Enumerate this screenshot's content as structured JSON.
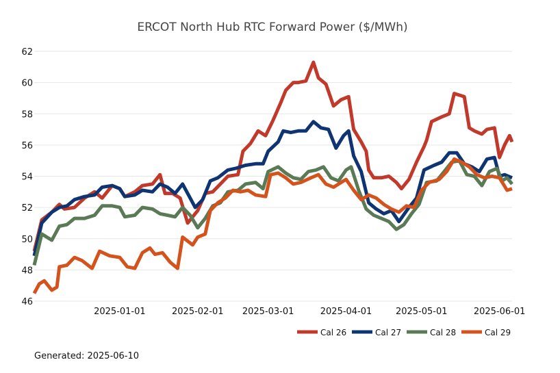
{
  "chart_data": {
    "type": "line",
    "title": "ERCOT North Hub RTC Forward Power ($/MWh)",
    "xlabel": "",
    "ylabel": "",
    "x_start": "2024-11-28",
    "x_end": "2025-06-06",
    "ylim": [
      46,
      62
    ],
    "yticks": [
      46,
      48,
      50,
      52,
      54,
      56,
      58,
      60,
      62
    ],
    "xticks": [
      "2025-01-01",
      "2025-02-01",
      "2025-03-01",
      "2025-04-01",
      "2025-05-01",
      "2025-06-01"
    ],
    "grid": "horizontal",
    "legend_position": "bottom-right",
    "series": [
      {
        "name": "Cal 26",
        "color": "#c0392b",
        "points": [
          [
            "2024-11-28",
            49.2
          ],
          [
            "2024-12-01",
            51.2
          ],
          [
            "2024-12-05",
            51.7
          ],
          [
            "2024-12-08",
            52.2
          ],
          [
            "2024-12-10",
            51.9
          ],
          [
            "2024-12-14",
            52.0
          ],
          [
            "2024-12-18",
            52.6
          ],
          [
            "2024-12-22",
            53.0
          ],
          [
            "2024-12-25",
            52.6
          ],
          [
            "2024-12-29",
            53.4
          ],
          [
            "2025-01-01",
            53.2
          ],
          [
            "2025-01-03",
            52.7
          ],
          [
            "2025-01-07",
            53.0
          ],
          [
            "2025-01-10",
            53.4
          ],
          [
            "2025-01-14",
            53.5
          ],
          [
            "2025-01-17",
            54.1
          ],
          [
            "2025-01-19",
            52.9
          ],
          [
            "2025-01-22",
            52.9
          ],
          [
            "2025-01-25",
            52.6
          ],
          [
            "2025-01-28",
            51.0
          ],
          [
            "2025-02-01",
            51.8
          ],
          [
            "2025-02-04",
            52.9
          ],
          [
            "2025-02-07",
            53.0
          ],
          [
            "2025-02-10",
            53.5
          ],
          [
            "2025-02-13",
            54.0
          ],
          [
            "2025-02-17",
            54.1
          ],
          [
            "2025-02-19",
            55.6
          ],
          [
            "2025-02-22",
            56.1
          ],
          [
            "2025-02-25",
            56.9
          ],
          [
            "2025-02-28",
            56.6
          ],
          [
            "2025-03-03",
            57.6
          ],
          [
            "2025-03-06",
            58.7
          ],
          [
            "2025-03-08",
            59.5
          ],
          [
            "2025-03-11",
            60.0
          ],
          [
            "2025-03-13",
            60.0
          ],
          [
            "2025-03-16",
            60.1
          ],
          [
            "2025-03-19",
            61.3
          ],
          [
            "2025-03-21",
            60.3
          ],
          [
            "2025-03-24",
            59.9
          ],
          [
            "2025-03-27",
            58.5
          ],
          [
            "2025-03-30",
            58.9
          ],
          [
            "2025-04-02",
            59.1
          ],
          [
            "2025-04-04",
            57.0
          ],
          [
            "2025-04-07",
            56.2
          ],
          [
            "2025-04-09",
            55.6
          ],
          [
            "2025-04-10",
            54.4
          ],
          [
            "2025-04-12",
            53.9
          ],
          [
            "2025-04-15",
            53.9
          ],
          [
            "2025-04-18",
            54.0
          ],
          [
            "2025-04-21",
            53.6
          ],
          [
            "2025-04-23",
            53.2
          ],
          [
            "2025-04-26",
            53.8
          ],
          [
            "2025-04-29",
            54.9
          ],
          [
            "2025-05-02",
            55.9
          ],
          [
            "2025-05-03",
            56.3
          ],
          [
            "2025-05-05",
            57.5
          ],
          [
            "2025-05-09",
            57.8
          ],
          [
            "2025-05-12",
            58.0
          ],
          [
            "2025-05-14",
            59.3
          ],
          [
            "2025-05-18",
            59.1
          ],
          [
            "2025-05-20",
            57.1
          ],
          [
            "2025-05-22",
            56.9
          ],
          [
            "2025-05-25",
            56.7
          ],
          [
            "2025-05-27",
            57.0
          ],
          [
            "2025-05-30",
            57.1
          ],
          [
            "2025-06-01",
            55.2
          ],
          [
            "2025-06-03",
            56.0
          ],
          [
            "2025-06-05",
            56.6
          ],
          [
            "2025-06-06",
            56.2
          ]
        ]
      },
      {
        "name": "Cal 27",
        "color": "#0f3472",
        "points": [
          [
            "2024-11-28",
            48.9
          ],
          [
            "2024-12-01",
            51.0
          ],
          [
            "2024-12-05",
            51.7
          ],
          [
            "2024-12-08",
            52.0
          ],
          [
            "2024-12-11",
            52.1
          ],
          [
            "2024-12-14",
            52.5
          ],
          [
            "2024-12-18",
            52.7
          ],
          [
            "2024-12-22",
            52.8
          ],
          [
            "2024-12-25",
            53.3
          ],
          [
            "2024-12-29",
            53.4
          ],
          [
            "2025-01-01",
            53.2
          ],
          [
            "2025-01-03",
            52.7
          ],
          [
            "2025-01-07",
            52.8
          ],
          [
            "2025-01-10",
            53.1
          ],
          [
            "2025-01-14",
            53.0
          ],
          [
            "2025-01-17",
            53.5
          ],
          [
            "2025-01-20",
            53.3
          ],
          [
            "2025-01-23",
            52.9
          ],
          [
            "2025-01-26",
            53.5
          ],
          [
            "2025-01-29",
            52.6
          ],
          [
            "2025-01-31",
            52.0
          ],
          [
            "2025-02-03",
            52.5
          ],
          [
            "2025-02-06",
            53.7
          ],
          [
            "2025-02-09",
            53.9
          ],
          [
            "2025-02-13",
            54.4
          ],
          [
            "2025-02-16",
            54.5
          ],
          [
            "2025-02-20",
            54.7
          ],
          [
            "2025-02-24",
            54.8
          ],
          [
            "2025-02-27",
            54.8
          ],
          [
            "2025-03-01",
            55.6
          ],
          [
            "2025-03-05",
            56.2
          ],
          [
            "2025-03-07",
            56.9
          ],
          [
            "2025-03-10",
            56.8
          ],
          [
            "2025-03-13",
            56.9
          ],
          [
            "2025-03-16",
            56.9
          ],
          [
            "2025-03-19",
            57.5
          ],
          [
            "2025-03-22",
            57.1
          ],
          [
            "2025-03-25",
            57.0
          ],
          [
            "2025-03-28",
            55.8
          ],
          [
            "2025-03-31",
            56.6
          ],
          [
            "2025-04-02",
            56.9
          ],
          [
            "2025-04-04",
            55.3
          ],
          [
            "2025-04-07",
            54.3
          ],
          [
            "2025-04-10",
            52.3
          ],
          [
            "2025-04-13",
            51.9
          ],
          [
            "2025-04-16",
            51.6
          ],
          [
            "2025-04-19",
            51.8
          ],
          [
            "2025-04-22",
            51.1
          ],
          [
            "2025-04-26",
            52.0
          ],
          [
            "2025-04-29",
            52.6
          ],
          [
            "2025-05-02",
            54.4
          ],
          [
            "2025-05-06",
            54.7
          ],
          [
            "2025-05-09",
            54.9
          ],
          [
            "2025-05-12",
            55.5
          ],
          [
            "2025-05-15",
            55.5
          ],
          [
            "2025-05-18",
            54.8
          ],
          [
            "2025-05-21",
            54.6
          ],
          [
            "2025-05-24",
            54.3
          ],
          [
            "2025-05-27",
            55.1
          ],
          [
            "2025-05-30",
            55.2
          ],
          [
            "2025-06-01",
            54.0
          ],
          [
            "2025-06-03",
            54.1
          ],
          [
            "2025-06-06",
            53.9
          ]
        ]
      },
      {
        "name": "Cal 28",
        "color": "#5a7a55",
        "points": [
          [
            "2024-11-28",
            48.3
          ],
          [
            "2024-12-01",
            50.3
          ],
          [
            "2024-12-05",
            49.9
          ],
          [
            "2024-12-08",
            50.8
          ],
          [
            "2024-12-11",
            50.9
          ],
          [
            "2024-12-14",
            51.3
          ],
          [
            "2024-12-18",
            51.3
          ],
          [
            "2024-12-22",
            51.5
          ],
          [
            "2024-12-25",
            52.1
          ],
          [
            "2024-12-29",
            52.1
          ],
          [
            "2025-01-01",
            52.0
          ],
          [
            "2025-01-03",
            51.4
          ],
          [
            "2025-01-07",
            51.5
          ],
          [
            "2025-01-10",
            52.0
          ],
          [
            "2025-01-14",
            51.9
          ],
          [
            "2025-01-17",
            51.6
          ],
          [
            "2025-01-20",
            51.5
          ],
          [
            "2025-01-23",
            51.4
          ],
          [
            "2025-01-26",
            52.0
          ],
          [
            "2025-01-29",
            51.5
          ],
          [
            "2025-02-01",
            50.7
          ],
          [
            "2025-02-04",
            51.3
          ],
          [
            "2025-02-07",
            52.1
          ],
          [
            "2025-02-10",
            52.3
          ],
          [
            "2025-02-13",
            53.0
          ],
          [
            "2025-02-17",
            53.1
          ],
          [
            "2025-02-20",
            53.5
          ],
          [
            "2025-02-24",
            53.6
          ],
          [
            "2025-02-27",
            53.2
          ],
          [
            "2025-03-01",
            54.3
          ],
          [
            "2025-03-05",
            54.6
          ],
          [
            "2025-03-08",
            54.2
          ],
          [
            "2025-03-11",
            53.9
          ],
          [
            "2025-03-14",
            53.8
          ],
          [
            "2025-03-17",
            54.3
          ],
          [
            "2025-03-20",
            54.4
          ],
          [
            "2025-03-23",
            54.6
          ],
          [
            "2025-03-26",
            53.9
          ],
          [
            "2025-03-29",
            53.7
          ],
          [
            "2025-04-01",
            54.4
          ],
          [
            "2025-04-03",
            54.6
          ],
          [
            "2025-04-06",
            53.1
          ],
          [
            "2025-04-09",
            51.9
          ],
          [
            "2025-04-12",
            51.5
          ],
          [
            "2025-04-15",
            51.3
          ],
          [
            "2025-04-18",
            51.1
          ],
          [
            "2025-04-21",
            50.6
          ],
          [
            "2025-04-24",
            50.9
          ],
          [
            "2025-04-27",
            51.6
          ],
          [
            "2025-04-30",
            52.2
          ],
          [
            "2025-05-03",
            53.6
          ],
          [
            "2025-05-07",
            53.7
          ],
          [
            "2025-05-10",
            54.3
          ],
          [
            "2025-05-13",
            54.9
          ],
          [
            "2025-05-16",
            55.0
          ],
          [
            "2025-05-19",
            54.1
          ],
          [
            "2025-05-22",
            54.0
          ],
          [
            "2025-05-25",
            53.4
          ],
          [
            "2025-05-28",
            54.3
          ],
          [
            "2025-05-31",
            54.5
          ],
          [
            "2025-06-02",
            53.7
          ],
          [
            "2025-06-04",
            53.9
          ],
          [
            "2025-06-06",
            53.5
          ]
        ]
      },
      {
        "name": "Cal 29",
        "color": "#d4531c",
        "points": [
          [
            "2024-11-28",
            46.5
          ],
          [
            "2024-11-30",
            47.1
          ],
          [
            "2024-12-02",
            47.3
          ],
          [
            "2024-12-05",
            46.7
          ],
          [
            "2024-12-07",
            46.9
          ],
          [
            "2024-12-08",
            48.2
          ],
          [
            "2024-12-11",
            48.3
          ],
          [
            "2024-12-14",
            48.8
          ],
          [
            "2024-12-17",
            48.6
          ],
          [
            "2024-12-21",
            48.1
          ],
          [
            "2024-12-24",
            49.2
          ],
          [
            "2024-12-28",
            48.9
          ],
          [
            "2025-01-01",
            48.8
          ],
          [
            "2025-01-04",
            48.2
          ],
          [
            "2025-01-07",
            48.1
          ],
          [
            "2025-01-10",
            49.1
          ],
          [
            "2025-01-13",
            49.4
          ],
          [
            "2025-01-15",
            49.0
          ],
          [
            "2025-01-18",
            49.1
          ],
          [
            "2025-01-21",
            48.5
          ],
          [
            "2025-01-24",
            48.1
          ],
          [
            "2025-01-26",
            50.1
          ],
          [
            "2025-01-30",
            49.6
          ],
          [
            "2025-02-01",
            50.1
          ],
          [
            "2025-02-04",
            50.3
          ],
          [
            "2025-02-06",
            51.8
          ],
          [
            "2025-02-09",
            52.3
          ],
          [
            "2025-02-12",
            52.6
          ],
          [
            "2025-02-15",
            53.1
          ],
          [
            "2025-02-18",
            53.0
          ],
          [
            "2025-02-21",
            53.1
          ],
          [
            "2025-02-24",
            52.8
          ],
          [
            "2025-02-28",
            52.7
          ],
          [
            "2025-03-02",
            54.1
          ],
          [
            "2025-03-05",
            54.2
          ],
          [
            "2025-03-08",
            53.9
          ],
          [
            "2025-03-11",
            53.5
          ],
          [
            "2025-03-14",
            53.6
          ],
          [
            "2025-03-18",
            53.9
          ],
          [
            "2025-03-21",
            54.1
          ],
          [
            "2025-03-24",
            53.5
          ],
          [
            "2025-03-27",
            53.3
          ],
          [
            "2025-03-30",
            53.6
          ],
          [
            "2025-04-01",
            53.8
          ],
          [
            "2025-04-04",
            53.1
          ],
          [
            "2025-04-07",
            52.5
          ],
          [
            "2025-04-10",
            52.8
          ],
          [
            "2025-04-13",
            52.6
          ],
          [
            "2025-04-16",
            52.2
          ],
          [
            "2025-04-19",
            51.9
          ],
          [
            "2025-04-22",
            51.7
          ],
          [
            "2025-04-25",
            52.1
          ],
          [
            "2025-04-28",
            52.0
          ],
          [
            "2025-05-01",
            53.1
          ],
          [
            "2025-05-04",
            53.6
          ],
          [
            "2025-05-08",
            53.8
          ],
          [
            "2025-05-11",
            54.3
          ],
          [
            "2025-05-14",
            55.1
          ],
          [
            "2025-05-17",
            54.9
          ],
          [
            "2025-05-20",
            54.6
          ],
          [
            "2025-05-23",
            54.1
          ],
          [
            "2025-05-26",
            53.9
          ],
          [
            "2025-05-29",
            54.0
          ],
          [
            "2025-06-01",
            53.9
          ],
          [
            "2025-06-04",
            53.1
          ],
          [
            "2025-06-06",
            53.2
          ]
        ]
      }
    ]
  },
  "footer": {
    "text": "Generated: 2025-06-10"
  }
}
